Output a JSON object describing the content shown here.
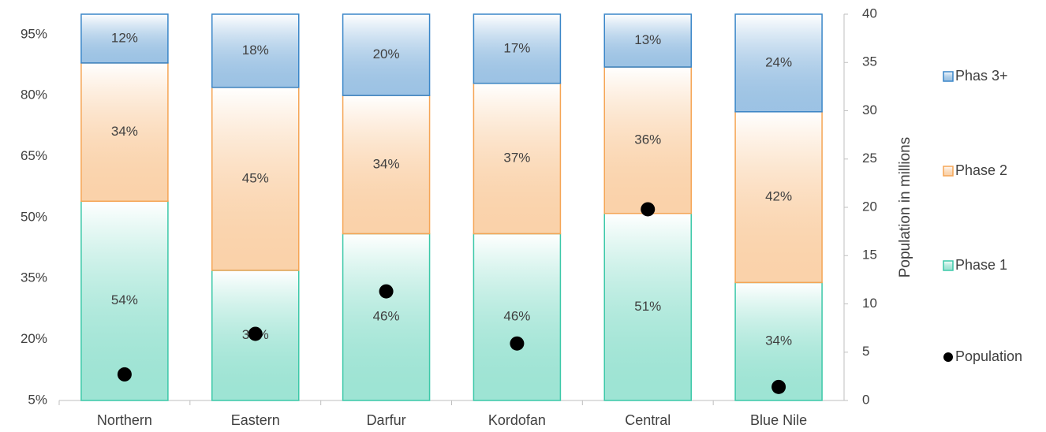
{
  "chart_data": {
    "type": "bar",
    "stacked": true,
    "categories": [
      "Northern",
      "Eastern",
      "Darfur",
      "Kordofan",
      "Central",
      "Blue Nile"
    ],
    "series": [
      {
        "name": "Phase 1",
        "color": "#3cc8a8",
        "values": [
          54,
          37,
          46,
          46,
          51,
          34
        ],
        "value_labels": [
          "54%",
          "37%",
          "46%",
          "46%",
          "51%",
          "34%"
        ]
      },
      {
        "name": "Phase 2",
        "color": "#f5a555",
        "values": [
          34,
          45,
          34,
          37,
          36,
          42
        ],
        "value_labels": [
          "34%",
          "45%",
          "34%",
          "37%",
          "36%",
          "42%"
        ]
      },
      {
        "name": "Phas 3+",
        "color": "#3a86c8",
        "values": [
          12,
          18,
          20,
          17,
          13,
          24
        ],
        "value_labels": [
          "12%",
          "18%",
          "20%",
          "17%",
          "13%",
          "24%"
        ]
      },
      {
        "name": "Population",
        "color": "#000000",
        "axis": "y2",
        "values": [
          2.7,
          6.9,
          11.3,
          5.9,
          19.8,
          1.4
        ]
      }
    ],
    "ylim": [
      5,
      100
    ],
    "yticks": [
      {
        "value": 5,
        "label": "5%"
      },
      {
        "value": 20,
        "label": "20%"
      },
      {
        "value": 35,
        "label": "35%"
      },
      {
        "value": 50,
        "label": "50%"
      },
      {
        "value": 65,
        "label": "65%"
      },
      {
        "value": 80,
        "label": "80%"
      },
      {
        "value": 95,
        "label": "95%"
      }
    ],
    "y2lim": [
      0,
      40
    ],
    "y2ticks": [
      0,
      5,
      10,
      15,
      20,
      25,
      30,
      35,
      40
    ],
    "y2_label": "Population in millions",
    "legend": "right",
    "grid": false
  }
}
